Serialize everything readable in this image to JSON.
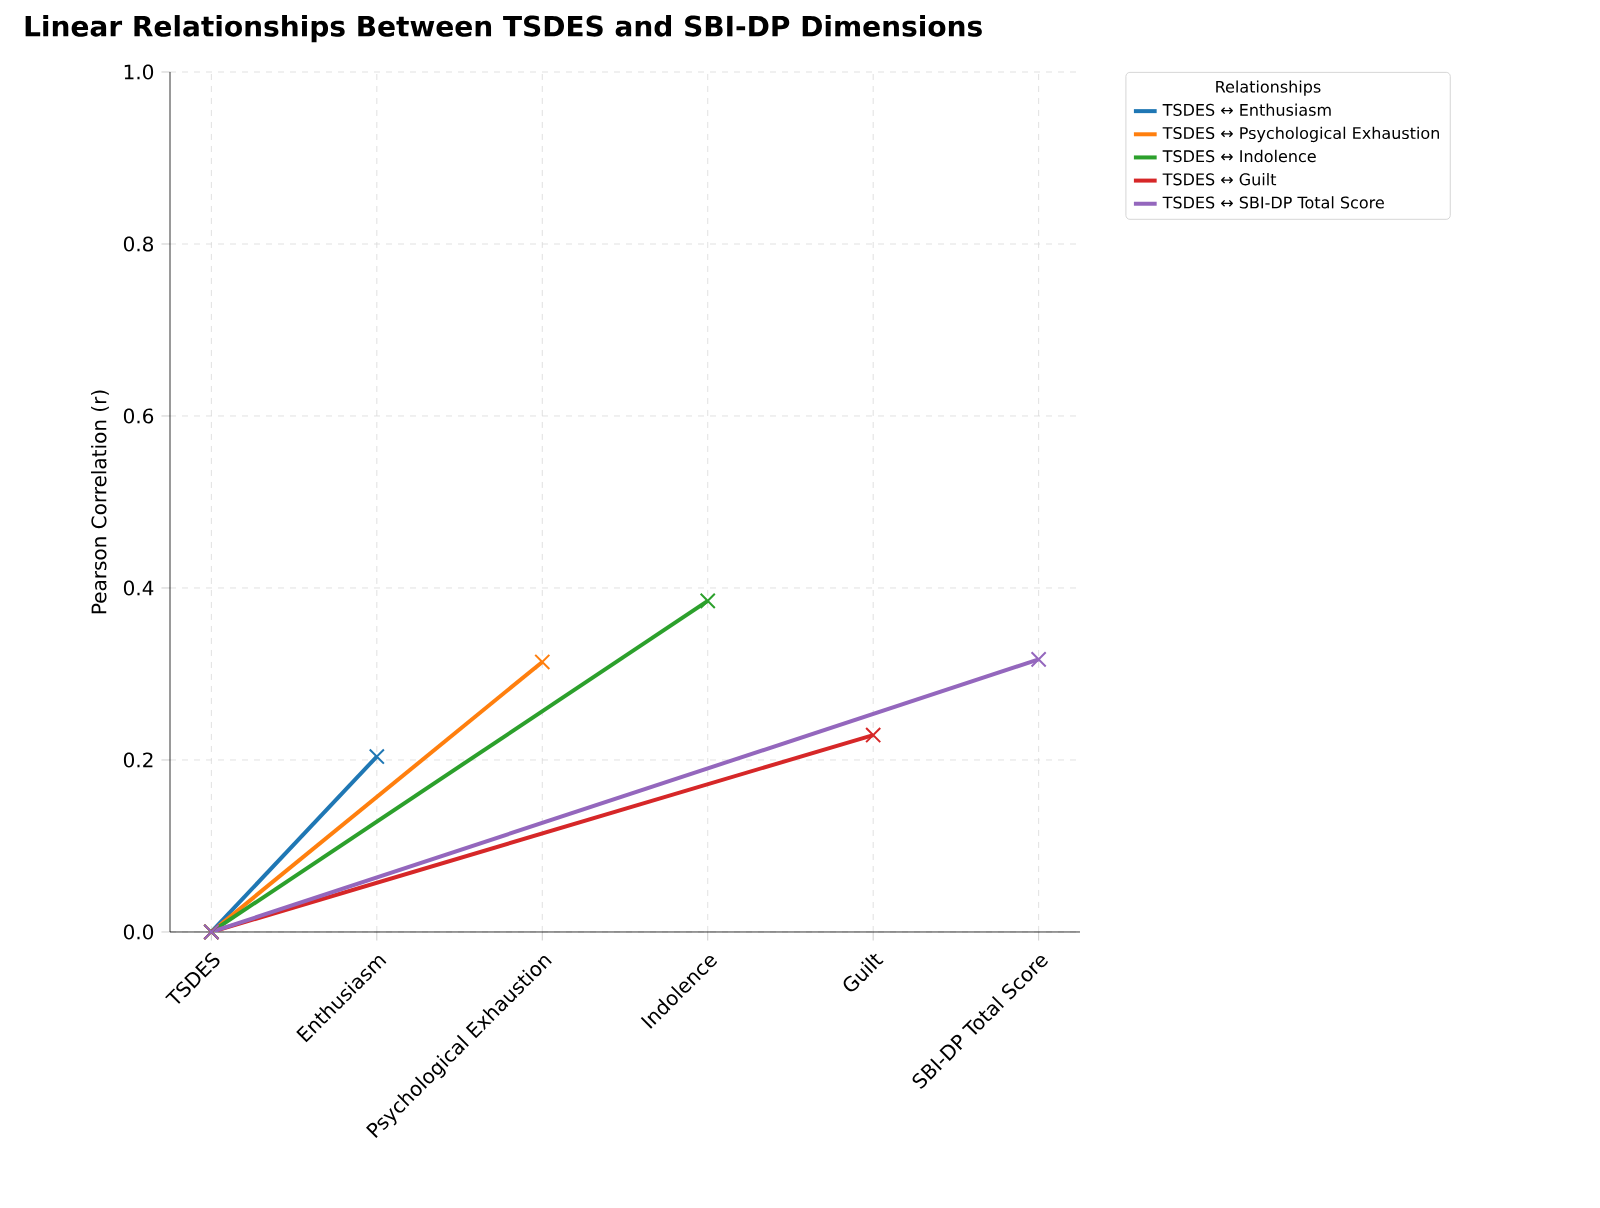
{
  "chart_data": {
    "type": "line",
    "title": "Linear Relationships Between TSDES and SBI-DP Dimensions",
    "ylabel": "Pearson Correlation (r)",
    "legend_title": "Relationships",
    "categories": [
      "TSDES",
      "Enthusiasm",
      "Psychological Exhaustion",
      "Indolence",
      "Guilt",
      "SBI-DP Total Score"
    ],
    "series": [
      {
        "name": "TSDES ↔ Enthusiasm",
        "color": "#1f77b4",
        "values": [
          0,
          0.204,
          null,
          null,
          null,
          null
        ]
      },
      {
        "name": "TSDES ↔ Psychological Exhaustion",
        "color": "#ff7f0e",
        "values": [
          0,
          null,
          0.314,
          null,
          null,
          null
        ]
      },
      {
        "name": "TSDES ↔ Indolence",
        "color": "#2ca02c",
        "values": [
          0,
          null,
          null,
          0.385,
          null,
          null
        ]
      },
      {
        "name": "TSDES ↔ Guilt",
        "color": "#d62728",
        "values": [
          0,
          null,
          null,
          null,
          0.229,
          null
        ]
      },
      {
        "name": "TSDES ↔ SBI-DP Total Score",
        "color": "#9467bd",
        "values": [
          0,
          null,
          null,
          null,
          null,
          0.317
        ]
      }
    ],
    "ylim": [
      0,
      1
    ],
    "yticks": [
      {
        "value": 0,
        "label": "0.0"
      },
      {
        "value": 0.2,
        "label": "0.2"
      },
      {
        "value": 0.4,
        "label": "0.4"
      },
      {
        "value": 0.6,
        "label": "0.6"
      },
      {
        "value": 0.8,
        "label": "0.8"
      },
      {
        "value": 1,
        "label": "1.0"
      }
    ],
    "grid": true,
    "legend": "top right",
    "marker": "cross",
    "line_style": "solid"
  }
}
